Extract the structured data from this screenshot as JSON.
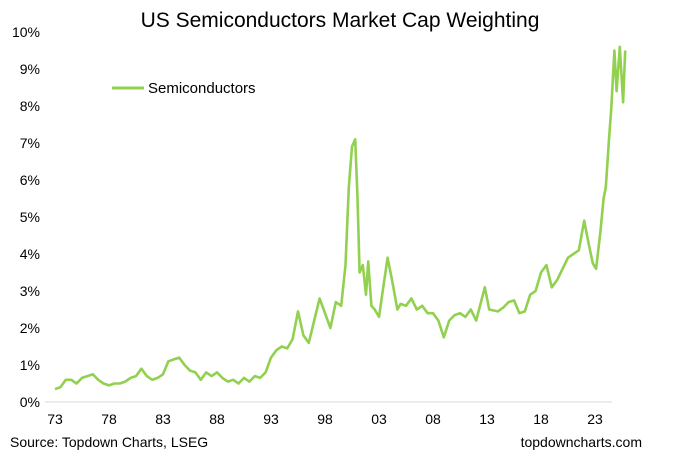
{
  "chart_data": {
    "type": "line",
    "title": "US Semiconductors Market Cap Weighting",
    "xlabel": "",
    "ylabel": "",
    "ylim": [
      0,
      10
    ],
    "xlim": [
      1972.6,
      2026
    ],
    "y_ticks": [
      "0%",
      "1%",
      "2%",
      "3%",
      "4%",
      "5%",
      "6%",
      "7%",
      "8%",
      "9%",
      "10%"
    ],
    "x_ticks": [
      {
        "year": 1973,
        "label": "73"
      },
      {
        "year": 1978,
        "label": "78"
      },
      {
        "year": 1983,
        "label": "83"
      },
      {
        "year": 1988,
        "label": "88"
      },
      {
        "year": 1993,
        "label": "93"
      },
      {
        "year": 1998,
        "label": "98"
      },
      {
        "year": 2003,
        "label": "03"
      },
      {
        "year": 2008,
        "label": "08"
      },
      {
        "year": 2013,
        "label": "13"
      },
      {
        "year": 2018,
        "label": "18"
      },
      {
        "year": 2023,
        "label": "23"
      }
    ],
    "grid": false,
    "legend": {
      "placement": "top-left",
      "entries": [
        "Semiconductors"
      ]
    },
    "series": [
      {
        "name": "Semiconductors",
        "color": "#92d050",
        "x": [
          1973,
          1973.5,
          1974,
          1974.5,
          1975,
          1975.5,
          1976,
          1976.5,
          1977,
          1977.5,
          1978,
          1978.5,
          1979,
          1979.5,
          1980,
          1980.5,
          1981,
          1981.5,
          1982,
          1982.5,
          1983,
          1983.5,
          1984,
          1984.5,
          1985,
          1985.5,
          1986,
          1986.5,
          1987,
          1987.5,
          1988,
          1988.5,
          1989,
          1989.5,
          1990,
          1990.5,
          1991,
          1991.5,
          1992,
          1992.5,
          1993,
          1993.5,
          1994,
          1994.5,
          1995,
          1995.5,
          1996,
          1996.5,
          1997,
          1997.5,
          1998,
          1998.5,
          1999,
          1999.5,
          1999.9,
          2000.2,
          2000.5,
          2000.8,
          2001,
          2001.2,
          2001.5,
          2001.8,
          2002,
          2002.3,
          2002.6,
          2003,
          2003.3,
          2003.8,
          2004.2,
          2004.7,
          2005,
          2005.5,
          2006,
          2006.5,
          2007,
          2007.5,
          2008,
          2008.5,
          2009,
          2009.5,
          2010,
          2010.5,
          2011,
          2011.5,
          2012,
          2012.8,
          2013.2,
          2014,
          2014.5,
          2015,
          2015.5,
          2016,
          2016.5,
          2017,
          2017.5,
          2018,
          2018.5,
          2019,
          2019.5,
          2020,
          2020.5,
          2021,
          2021.5,
          2022,
          2022.4,
          2022.8,
          2023.1,
          2023.5,
          2023.8,
          2024,
          2024.3,
          2024.5,
          2024.8,
          2025,
          2025.3,
          2025.6,
          2025.8
        ],
        "y": [
          0.35,
          0.4,
          0.6,
          0.6,
          0.5,
          0.65,
          0.7,
          0.75,
          0.6,
          0.5,
          0.45,
          0.5,
          0.5,
          0.55,
          0.65,
          0.7,
          0.9,
          0.7,
          0.6,
          0.65,
          0.75,
          1.1,
          1.15,
          1.2,
          1.0,
          0.85,
          0.8,
          0.6,
          0.8,
          0.7,
          0.8,
          0.65,
          0.55,
          0.6,
          0.5,
          0.65,
          0.55,
          0.7,
          0.65,
          0.8,
          1.2,
          1.4,
          1.5,
          1.45,
          1.7,
          2.45,
          1.8,
          1.6,
          2.2,
          2.8,
          2.4,
          2.0,
          2.7,
          2.6,
          3.7,
          5.8,
          6.9,
          7.1,
          5.6,
          3.5,
          3.7,
          2.9,
          3.8,
          2.6,
          2.5,
          2.3,
          2.9,
          3.9,
          3.3,
          2.5,
          2.65,
          2.6,
          2.8,
          2.5,
          2.6,
          2.4,
          2.4,
          2.2,
          1.75,
          2.2,
          2.35,
          2.4,
          2.3,
          2.5,
          2.2,
          3.1,
          2.5,
          2.45,
          2.55,
          2.7,
          2.75,
          2.4,
          2.45,
          2.9,
          3.0,
          3.5,
          3.7,
          3.1,
          3.3,
          3.6,
          3.9,
          4.0,
          4.1,
          4.9,
          4.3,
          3.75,
          3.6,
          4.6,
          5.5,
          5.8,
          7.1,
          7.9,
          9.5,
          8.4,
          9.6,
          8.1,
          9.5
        ]
      }
    ]
  },
  "footer": {
    "source": "Source: Topdown Charts, LSEG",
    "brand": "topdowncharts.com"
  }
}
